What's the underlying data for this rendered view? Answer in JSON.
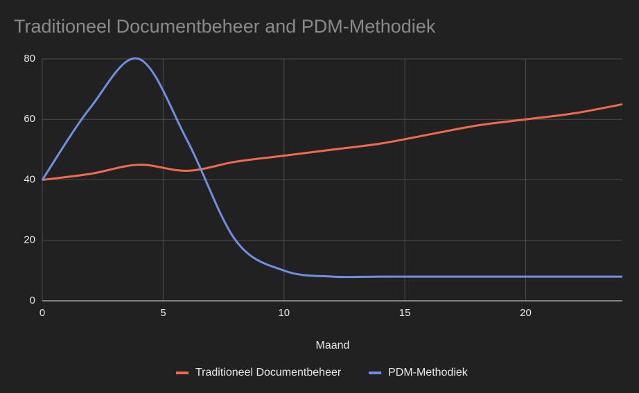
{
  "chart_data": {
    "type": "line",
    "title": "Traditioneel Documentbeheer and PDM-Methodiek",
    "x_label": "Maand",
    "x": [
      0,
      2,
      4,
      6,
      8,
      10,
      12,
      14,
      16,
      18,
      20,
      22,
      24
    ],
    "series": [
      {
        "name": "Traditioneel Documentbeheer",
        "color": "#ef6b4f",
        "values": [
          40,
          42,
          45,
          43,
          46,
          48,
          50,
          52,
          55,
          58,
          60,
          62,
          65
        ]
      },
      {
        "name": "PDM-Methodiek",
        "color": "#6f8fe0",
        "values": [
          40,
          64,
          80,
          53,
          20,
          10,
          8,
          8,
          8,
          8,
          8,
          8,
          8
        ]
      }
    ],
    "xlim": [
      0,
      24
    ],
    "xticks": [
      0,
      5,
      10,
      15,
      20
    ],
    "ylim": [
      0,
      80
    ],
    "yticks": [
      0,
      20,
      40,
      60,
      80
    ],
    "grid": true,
    "legend": "bottom"
  }
}
